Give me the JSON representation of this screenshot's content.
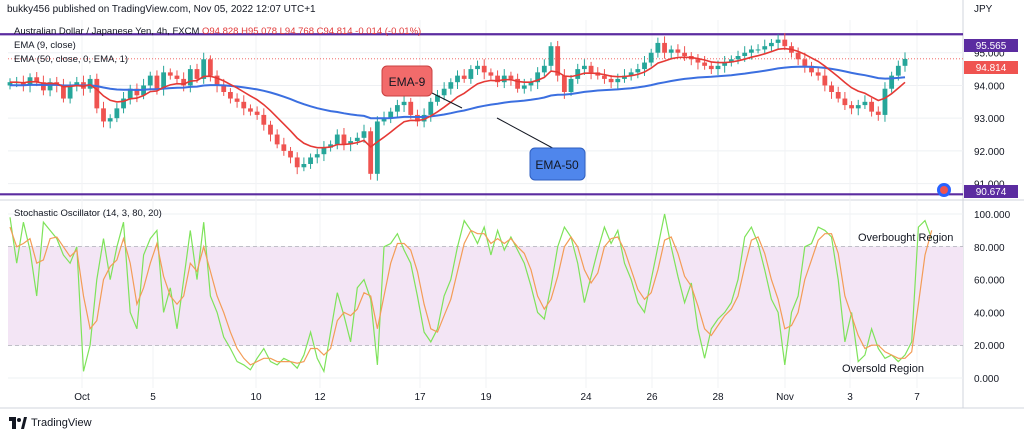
{
  "header": {
    "publisher": "bukky456 published on TradingView.com, Nov 05, 2022 12:07 UTC+1"
  },
  "symbol": {
    "name": "Australian Dollar / Japanese Yen, 4h, FXCM",
    "ohlc": "O94.828 H95.078 L94.768 C94.814 -0.014 (-0.01%)"
  },
  "legend": {
    "ema9": "EMA (9, close)",
    "ema50": "EMA (50, close, 0, EMA, 1)",
    "stoch": "Stochastic Oscillator (14, 3, 80, 20)"
  },
  "annotations": {
    "ema9_callout": "EMA-9",
    "ema50_callout": "EMA-50",
    "overbought": "Overbought Region",
    "oversold": "Oversold Region"
  },
  "price_axis": {
    "currency": "JPY",
    "ticks": [
      "95.000",
      "94.000",
      "93.000",
      "92.000",
      "91.000"
    ],
    "upper_line_label": "95.565",
    "current_label": "94.814",
    "lower_line_label": "90.674"
  },
  "stoch_axis": {
    "ticks": [
      "100.000",
      "80.000",
      "60.000",
      "40.000",
      "20.000",
      "0.000"
    ]
  },
  "time_axis": {
    "labels": [
      "Oct",
      "5",
      "10",
      "12",
      "17",
      "19",
      "24",
      "26",
      "28",
      "Nov",
      "3",
      "7"
    ]
  },
  "footer": {
    "brand": "TradingView"
  },
  "colors": {
    "bull": "#26a69a",
    "bear": "#ef5350",
    "ema9": "#e53935",
    "ema50": "#3b6fe0",
    "level_line": "#5b2ca0",
    "stoch_k": "#7ee35a",
    "stoch_d": "#f39c57",
    "stoch_band": "#f3e5f5",
    "ema9_callout_bg": "#f26b6b",
    "ema50_callout_bg": "#4f86ec"
  },
  "chart_data": {
    "type": "candlestick",
    "price_range": [
      90.5,
      96.0
    ],
    "levels": [
      95.565,
      90.674
    ],
    "last_close": 94.814,
    "closes": [
      94.1,
      94.1,
      94.0,
      94.25,
      94.1,
      93.85,
      94.1,
      94.0,
      93.6,
      94.0,
      94.1,
      93.9,
      94.2,
      93.3,
      92.9,
      93.0,
      93.3,
      93.6,
      93.9,
      93.7,
      94.0,
      94.3,
      93.9,
      94.4,
      94.3,
      94.2,
      94.0,
      94.5,
      94.2,
      94.8,
      94.3,
      94.0,
      93.8,
      93.6,
      93.5,
      93.3,
      93.2,
      93.1,
      92.8,
      92.5,
      92.2,
      92.0,
      91.8,
      91.5,
      91.6,
      91.8,
      91.9,
      92.1,
      92.2,
      92.5,
      92.2,
      92.3,
      92.4,
      92.6,
      91.3,
      92.9,
      93.0,
      93.2,
      93.4,
      93.5,
      93.1,
      92.9,
      93.1,
      93.5,
      93.7,
      93.9,
      94.1,
      94.3,
      94.2,
      94.5,
      94.6,
      94.4,
      94.3,
      94.1,
      94.3,
      94.2,
      93.9,
      94.0,
      94.1,
      94.4,
      94.6,
      95.2,
      94.3,
      93.8,
      94.2,
      94.5,
      94.6,
      94.4,
      94.3,
      94.2,
      94.1,
      94.2,
      94.3,
      94.4,
      94.5,
      94.7,
      95.0,
      95.3,
      95.0,
      95.1,
      95.0,
      94.9,
      94.8,
      94.7,
      94.6,
      94.5,
      94.6,
      94.7,
      94.8,
      94.9,
      95.0,
      95.1,
      95.1,
      95.2,
      95.3,
      95.4,
      95.2,
      95.0,
      94.8,
      94.6,
      94.4,
      94.3,
      94.0,
      93.8,
      93.6,
      93.4,
      93.3,
      93.4,
      93.5,
      93.2,
      93.1,
      93.9,
      94.3,
      94.6,
      94.81
    ],
    "stoch_range": [
      0,
      100
    ],
    "stoch_levels": [
      80,
      20
    ],
    "stoch_k": [
      98,
      70,
      95,
      78,
      50,
      95,
      90,
      85,
      75,
      70,
      80,
      4,
      20,
      60,
      85,
      60,
      80,
      95,
      40,
      30,
      75,
      85,
      90,
      40,
      55,
      30,
      60,
      90,
      60,
      95,
      50,
      40,
      25,
      18,
      10,
      8,
      5,
      12,
      18,
      10,
      8,
      12,
      10,
      6,
      14,
      28,
      12,
      4,
      28,
      52,
      38,
      22,
      55,
      60,
      48,
      8,
      80,
      82,
      88,
      78,
      70,
      50,
      28,
      22,
      30,
      50,
      60,
      80,
      96,
      90,
      82,
      92,
      75,
      90,
      78,
      86,
      78,
      70,
      56,
      40,
      36,
      56,
      80,
      92,
      86,
      70,
      46,
      62,
      78,
      92,
      82,
      90,
      70,
      60,
      46,
      40,
      60,
      80,
      100,
      80,
      62,
      46,
      58,
      30,
      12,
      30,
      36,
      40,
      46,
      60,
      86,
      92,
      82,
      66,
      48,
      40,
      8,
      40,
      50,
      80,
      82,
      92,
      90,
      86,
      60,
      22,
      40,
      10,
      14,
      30,
      18,
      12,
      14,
      10,
      14,
      22,
      92,
      96,
      85
    ],
    "stoch_d": [
      92,
      80,
      82,
      85,
      70,
      72,
      85,
      86,
      80,
      74,
      78,
      50,
      30,
      35,
      60,
      68,
      72,
      85,
      70,
      45,
      55,
      70,
      82,
      62,
      50,
      45,
      50,
      70,
      65,
      80,
      65,
      50,
      40,
      28,
      18,
      12,
      8,
      10,
      12,
      12,
      10,
      10,
      10,
      9,
      10,
      18,
      18,
      14,
      18,
      35,
      40,
      38,
      42,
      52,
      50,
      30,
      50,
      70,
      82,
      82,
      78,
      65,
      45,
      30,
      28,
      38,
      48,
      65,
      82,
      90,
      88,
      88,
      82,
      85,
      82,
      85,
      80,
      76,
      66,
      50,
      42,
      48,
      62,
      80,
      86,
      80,
      66,
      58,
      64,
      80,
      85,
      86,
      78,
      66,
      54,
      48,
      52,
      66,
      84,
      86,
      76,
      62,
      56,
      44,
      30,
      26,
      32,
      38,
      42,
      50,
      68,
      84,
      86,
      76,
      60,
      48,
      30,
      32,
      40,
      60,
      72,
      84,
      88,
      88,
      76,
      50,
      38,
      26,
      18,
      20,
      20,
      16,
      14,
      12,
      12,
      16,
      45,
      75,
      90
    ]
  }
}
